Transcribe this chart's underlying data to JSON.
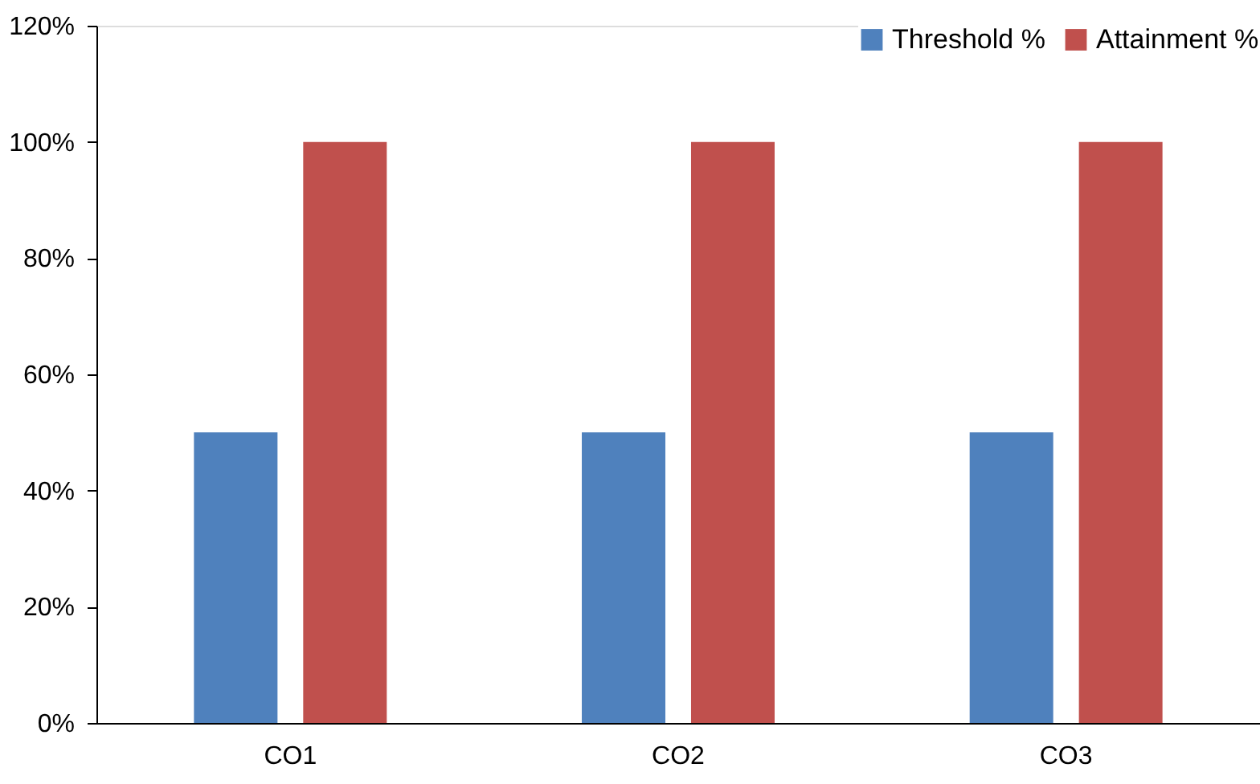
{
  "chart_data": {
    "type": "bar",
    "categories": [
      "CO1",
      "CO2",
      "CO3"
    ],
    "series": [
      {
        "name": "Threshold %",
        "color": "#4f81bd",
        "values": [
          50,
          50,
          50
        ]
      },
      {
        "name": "Attainment %",
        "color": "#c0504d",
        "values": [
          100,
          100,
          100
        ]
      }
    ],
    "ylim": [
      0,
      120
    ],
    "yticks": [
      {
        "value": 0,
        "label": "0%"
      },
      {
        "value": 20,
        "label": "20%"
      },
      {
        "value": 40,
        "label": "40%"
      },
      {
        "value": 60,
        "label": "60%"
      },
      {
        "value": 80,
        "label": "80%"
      },
      {
        "value": 100,
        "label": "100%"
      },
      {
        "value": 120,
        "label": "120%"
      }
    ],
    "grid": false,
    "legend": "top right"
  }
}
